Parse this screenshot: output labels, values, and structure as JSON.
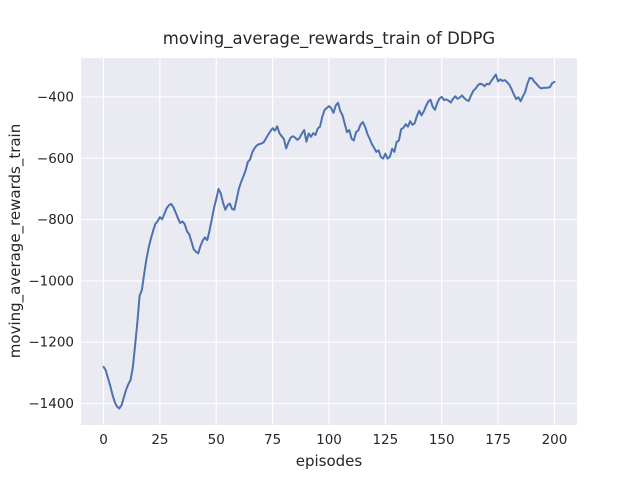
{
  "window": {
    "kind": "matplotlib-figure",
    "background": "#ffffff"
  },
  "chart_data": {
    "type": "line",
    "title": "moving_average_rewards_train of DDPG",
    "xlabel": "episodes",
    "ylabel": "moving_average_rewards_train",
    "legend": null,
    "grid": true,
    "axes_background": "#eaeaf2",
    "grid_color": "#ffffff",
    "line_color": "#4c72b0",
    "text_color": "#262626",
    "xlim": [
      -10,
      210
    ],
    "ylim": [
      -1470,
      -273
    ],
    "x_ticks": [
      0,
      25,
      50,
      75,
      100,
      125,
      150,
      175,
      200
    ],
    "y_ticks": [
      -400,
      -600,
      -800,
      -1000,
      -1200,
      -1400
    ],
    "series": [
      {
        "name": "moving_average_rewards_train",
        "x": [
          0,
          1,
          2,
          3,
          4,
          5,
          6,
          7,
          8,
          9,
          10,
          11,
          12,
          13,
          14,
          15,
          16,
          17,
          18,
          19,
          20,
          21,
          22,
          23,
          24,
          25,
          26,
          27,
          28,
          29,
          30,
          31,
          32,
          33,
          34,
          35,
          36,
          37,
          38,
          39,
          40,
          41,
          42,
          43,
          44,
          45,
          46,
          47,
          48,
          49,
          50,
          51,
          52,
          53,
          54,
          55,
          56,
          57,
          58,
          59,
          60,
          61,
          62,
          63,
          64,
          65,
          66,
          67,
          68,
          69,
          70,
          71,
          72,
          73,
          74,
          75,
          76,
          77,
          78,
          79,
          80,
          81,
          82,
          83,
          84,
          85,
          86,
          87,
          88,
          89,
          90,
          91,
          92,
          93,
          94,
          95,
          96,
          97,
          98,
          99,
          100,
          101,
          102,
          103,
          104,
          105,
          106,
          107,
          108,
          109,
          110,
          111,
          112,
          113,
          114,
          115,
          116,
          117,
          118,
          119,
          120,
          121,
          122,
          123,
          124,
          125,
          126,
          127,
          128,
          129,
          130,
          131,
          132,
          133,
          134,
          135,
          136,
          137,
          138,
          139,
          140,
          141,
          142,
          143,
          144,
          145,
          146,
          147,
          148,
          149,
          150,
          151,
          152,
          153,
          154,
          155,
          156,
          157,
          158,
          159,
          160,
          161,
          162,
          163,
          164,
          165,
          166,
          167,
          168,
          169,
          170,
          171,
          172,
          173,
          174,
          175,
          176,
          177,
          178,
          179,
          180,
          181,
          182,
          183,
          184,
          185,
          186,
          187,
          188,
          189,
          190,
          191,
          192,
          193,
          194,
          195,
          196,
          197,
          198,
          199,
          200
        ],
        "y": [
          -1280,
          -1292,
          -1318,
          -1343,
          -1372,
          -1396,
          -1410,
          -1416,
          -1405,
          -1380,
          -1355,
          -1337,
          -1323,
          -1282,
          -1210,
          -1135,
          -1048,
          -1030,
          -978,
          -930,
          -892,
          -862,
          -836,
          -814,
          -805,
          -792,
          -799,
          -781,
          -763,
          -753,
          -749,
          -760,
          -777,
          -796,
          -811,
          -806,
          -815,
          -838,
          -848,
          -872,
          -897,
          -905,
          -910,
          -886,
          -868,
          -858,
          -867,
          -836,
          -800,
          -762,
          -733,
          -700,
          -715,
          -745,
          -768,
          -753,
          -748,
          -765,
          -768,
          -735,
          -700,
          -678,
          -660,
          -640,
          -612,
          -604,
          -580,
          -567,
          -558,
          -554,
          -552,
          -548,
          -536,
          -523,
          -512,
          -502,
          -510,
          -496,
          -518,
          -528,
          -537,
          -568,
          -548,
          -533,
          -528,
          -533,
          -540,
          -533,
          -519,
          -508,
          -546,
          -519,
          -530,
          -518,
          -524,
          -503,
          -497,
          -465,
          -443,
          -436,
          -430,
          -437,
          -452,
          -428,
          -419,
          -446,
          -460,
          -488,
          -515,
          -508,
          -536,
          -542,
          -515,
          -509,
          -490,
          -482,
          -497,
          -520,
          -536,
          -553,
          -566,
          -579,
          -574,
          -596,
          -601,
          -585,
          -601,
          -595,
          -569,
          -579,
          -547,
          -542,
          -505,
          -501,
          -489,
          -497,
          -479,
          -491,
          -486,
          -462,
          -445,
          -460,
          -448,
          -430,
          -415,
          -409,
          -432,
          -442,
          -420,
          -405,
          -400,
          -410,
          -408,
          -412,
          -418,
          -406,
          -398,
          -406,
          -402,
          -395,
          -404,
          -410,
          -413,
          -395,
          -380,
          -373,
          -362,
          -357,
          -359,
          -365,
          -357,
          -359,
          -348,
          -337,
          -327,
          -349,
          -343,
          -348,
          -345,
          -352,
          -360,
          -375,
          -392,
          -407,
          -401,
          -414,
          -398,
          -384,
          -357,
          -338,
          -339,
          -350,
          -357,
          -366,
          -372,
          -371,
          -370,
          -370,
          -368,
          -355,
          -351
        ]
      }
    ]
  }
}
